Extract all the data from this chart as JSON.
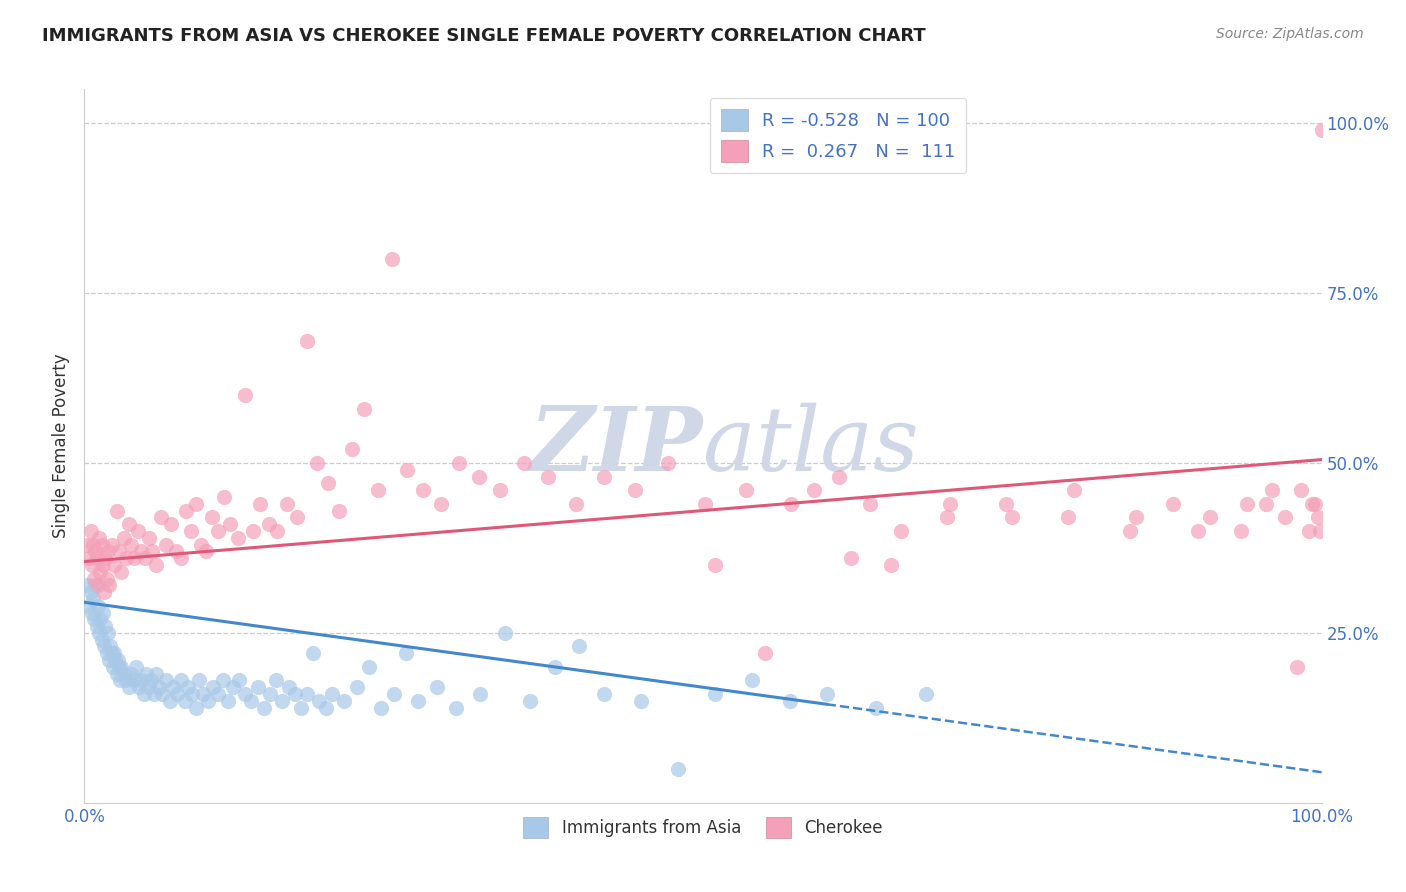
{
  "title": "IMMIGRANTS FROM ASIA VS CHEROKEE SINGLE FEMALE POVERTY CORRELATION CHART",
  "source": "Source: ZipAtlas.com",
  "ylabel": "Single Female Poverty",
  "legend_label1": "Immigrants from Asia",
  "legend_label2": "Cherokee",
  "R1": "-0.528",
  "N1": "100",
  "R2": "0.267",
  "N2": "111",
  "color_asia": "#a8c8e8",
  "color_cherokee": "#f4a0b8",
  "color_asia_line": "#4488cc",
  "color_cherokee_line": "#e05878",
  "watermark_color": "#d0d8e8",
  "asia_x": [
    0.002,
    0.004,
    0.005,
    0.006,
    0.007,
    0.008,
    0.009,
    0.01,
    0.011,
    0.012,
    0.013,
    0.014,
    0.015,
    0.016,
    0.017,
    0.018,
    0.019,
    0.02,
    0.021,
    0.022,
    0.023,
    0.024,
    0.025,
    0.026,
    0.027,
    0.028,
    0.029,
    0.03,
    0.032,
    0.034,
    0.036,
    0.038,
    0.04,
    0.042,
    0.044,
    0.046,
    0.048,
    0.05,
    0.052,
    0.054,
    0.056,
    0.058,
    0.06,
    0.063,
    0.066,
    0.069,
    0.072,
    0.075,
    0.078,
    0.081,
    0.084,
    0.087,
    0.09,
    0.093,
    0.096,
    0.1,
    0.104,
    0.108,
    0.112,
    0.116,
    0.12,
    0.125,
    0.13,
    0.135,
    0.14,
    0.145,
    0.15,
    0.155,
    0.16,
    0.165,
    0.17,
    0.175,
    0.18,
    0.185,
    0.19,
    0.195,
    0.2,
    0.21,
    0.22,
    0.23,
    0.24,
    0.25,
    0.26,
    0.27,
    0.285,
    0.3,
    0.32,
    0.34,
    0.36,
    0.38,
    0.4,
    0.42,
    0.45,
    0.48,
    0.51,
    0.54,
    0.57,
    0.6,
    0.64,
    0.68
  ],
  "asia_y": [
    0.32,
    0.29,
    0.31,
    0.28,
    0.3,
    0.27,
    0.32,
    0.26,
    0.29,
    0.25,
    0.27,
    0.24,
    0.28,
    0.23,
    0.26,
    0.22,
    0.25,
    0.21,
    0.23,
    0.22,
    0.2,
    0.22,
    0.21,
    0.19,
    0.21,
    0.2,
    0.18,
    0.2,
    0.19,
    0.18,
    0.17,
    0.19,
    0.18,
    0.2,
    0.17,
    0.18,
    0.16,
    0.19,
    0.17,
    0.18,
    0.16,
    0.19,
    0.17,
    0.16,
    0.18,
    0.15,
    0.17,
    0.16,
    0.18,
    0.15,
    0.17,
    0.16,
    0.14,
    0.18,
    0.16,
    0.15,
    0.17,
    0.16,
    0.18,
    0.15,
    0.17,
    0.18,
    0.16,
    0.15,
    0.17,
    0.14,
    0.16,
    0.18,
    0.15,
    0.17,
    0.16,
    0.14,
    0.16,
    0.22,
    0.15,
    0.14,
    0.16,
    0.15,
    0.17,
    0.2,
    0.14,
    0.16,
    0.22,
    0.15,
    0.17,
    0.14,
    0.16,
    0.25,
    0.15,
    0.2,
    0.23,
    0.16,
    0.15,
    0.05,
    0.16,
    0.18,
    0.15,
    0.16,
    0.14,
    0.16
  ],
  "cherokee_x": [
    0.002,
    0.004,
    0.005,
    0.006,
    0.007,
    0.008,
    0.009,
    0.01,
    0.011,
    0.012,
    0.013,
    0.014,
    0.015,
    0.016,
    0.017,
    0.018,
    0.019,
    0.02,
    0.022,
    0.024,
    0.026,
    0.028,
    0.03,
    0.032,
    0.034,
    0.036,
    0.038,
    0.04,
    0.043,
    0.046,
    0.049,
    0.052,
    0.055,
    0.058,
    0.062,
    0.066,
    0.07,
    0.074,
    0.078,
    0.082,
    0.086,
    0.09,
    0.094,
    0.098,
    0.103,
    0.108,
    0.113,
    0.118,
    0.124,
    0.13,
    0.136,
    0.142,
    0.149,
    0.156,
    0.164,
    0.172,
    0.18,
    0.188,
    0.197,
    0.206,
    0.216,
    0.226,
    0.237,
    0.249,
    0.261,
    0.274,
    0.288,
    0.303,
    0.319,
    0.336,
    0.355,
    0.375,
    0.397,
    0.42,
    0.445,
    0.472,
    0.502,
    0.535,
    0.571,
    0.61,
    0.652,
    0.697,
    0.745,
    0.795,
    0.845,
    0.88,
    0.91,
    0.935,
    0.955,
    0.97,
    0.983,
    0.992,
    0.997,
    0.999,
    1.0,
    0.62,
    0.66,
    0.7,
    0.75,
    0.8,
    0.85,
    0.9,
    0.94,
    0.96,
    0.98,
    0.99,
    0.995,
    0.51,
    0.55,
    0.59,
    0.635
  ],
  "cherokee_y": [
    0.38,
    0.36,
    0.4,
    0.35,
    0.38,
    0.33,
    0.37,
    0.36,
    0.32,
    0.39,
    0.34,
    0.38,
    0.35,
    0.31,
    0.36,
    0.33,
    0.37,
    0.32,
    0.38,
    0.35,
    0.43,
    0.37,
    0.34,
    0.39,
    0.36,
    0.41,
    0.38,
    0.36,
    0.4,
    0.37,
    0.36,
    0.39,
    0.37,
    0.35,
    0.42,
    0.38,
    0.41,
    0.37,
    0.36,
    0.43,
    0.4,
    0.44,
    0.38,
    0.37,
    0.42,
    0.4,
    0.45,
    0.41,
    0.39,
    0.6,
    0.4,
    0.44,
    0.41,
    0.4,
    0.44,
    0.42,
    0.68,
    0.5,
    0.47,
    0.43,
    0.52,
    0.58,
    0.46,
    0.8,
    0.49,
    0.46,
    0.44,
    0.5,
    0.48,
    0.46,
    0.5,
    0.48,
    0.44,
    0.48,
    0.46,
    0.5,
    0.44,
    0.46,
    0.44,
    0.48,
    0.35,
    0.42,
    0.44,
    0.42,
    0.4,
    0.44,
    0.42,
    0.4,
    0.44,
    0.42,
    0.46,
    0.44,
    0.42,
    0.4,
    0.99,
    0.36,
    0.4,
    0.44,
    0.42,
    0.46,
    0.42,
    0.4,
    0.44,
    0.46,
    0.2,
    0.4,
    0.44,
    0.35,
    0.22,
    0.46,
    0.44
  ],
  "xlim": [
    0,
    1.0
  ],
  "ylim": [
    0,
    1.05
  ],
  "asia_line_x0": 0.0,
  "asia_line_x1": 0.6,
  "asia_line_y0": 0.295,
  "asia_line_y1": 0.145,
  "cherokee_line_x0": 0.0,
  "cherokee_line_x1": 1.0,
  "cherokee_line_y0": 0.355,
  "cherokee_line_y1": 0.505
}
